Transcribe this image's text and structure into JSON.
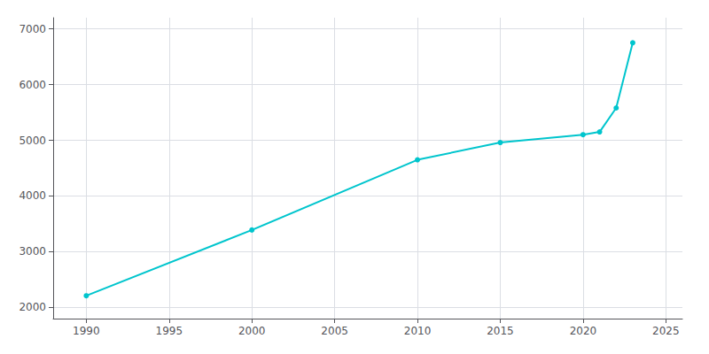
{
  "chart_data": {
    "type": "line",
    "x": [
      1990,
      2000,
      2010,
      2015,
      2020,
      2021,
      2022,
      2023
    ],
    "values": [
      2210,
      3390,
      4650,
      4960,
      5100,
      5150,
      5580,
      6750
    ],
    "color": "#00c5cd",
    "marker": "circle",
    "xlim": [
      1988,
      2026
    ],
    "ylim": [
      1800,
      7200
    ],
    "xticks": [
      1990,
      1995,
      2000,
      2005,
      2010,
      2015,
      2020,
      2025
    ],
    "yticks": [
      2000,
      3000,
      4000,
      5000,
      6000,
      7000
    ],
    "grid": true
  }
}
